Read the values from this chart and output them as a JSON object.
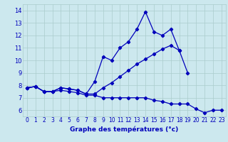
{
  "title": "Graphe des températures (°c)",
  "background_color": "#cce8ee",
  "grid_color": "#aacccc",
  "line_color": "#0000bb",
  "ylim": [
    5.5,
    14.5
  ],
  "yticks": [
    6,
    7,
    8,
    9,
    10,
    11,
    12,
    13,
    14
  ],
  "xlabels": [
    "0",
    "1",
    "2",
    "3",
    "4",
    "5",
    "6",
    "7",
    "8",
    "9",
    "10",
    "11",
    "12",
    "13",
    "14",
    "15",
    "16",
    "17",
    "18",
    "19",
    "20",
    "21",
    "22",
    "23"
  ],
  "line1_x": [
    0,
    1,
    2,
    3,
    4,
    5,
    6,
    7,
    8,
    9,
    10,
    11,
    12,
    13,
    14,
    15,
    16,
    17,
    18
  ],
  "line1_y": [
    7.8,
    7.9,
    7.5,
    7.5,
    7.8,
    7.7,
    7.6,
    7.3,
    8.3,
    10.3,
    10.0,
    11.0,
    11.5,
    12.5,
    13.9,
    12.3,
    12.0,
    12.5,
    10.8
  ],
  "line2_x": [
    0,
    1,
    2,
    3,
    4,
    5,
    6,
    7,
    8,
    9,
    10,
    11,
    12,
    13,
    14,
    15,
    16,
    17,
    18,
    19
  ],
  "line2_y": [
    7.8,
    7.9,
    7.5,
    7.5,
    7.8,
    7.7,
    7.6,
    7.3,
    7.3,
    7.8,
    8.2,
    8.7,
    9.2,
    9.7,
    10.1,
    10.5,
    10.9,
    11.2,
    10.8,
    9.0
  ],
  "line3_x": [
    0,
    1,
    2,
    3,
    4,
    5,
    6,
    7,
    8,
    9,
    10,
    11,
    12,
    13,
    14,
    15,
    16,
    17,
    18,
    19,
    20,
    21,
    22,
    23
  ],
  "line3_y": [
    7.8,
    7.9,
    7.5,
    7.5,
    7.6,
    7.5,
    7.4,
    7.2,
    7.2,
    7.0,
    7.0,
    7.0,
    7.0,
    7.0,
    7.0,
    6.8,
    6.7,
    6.5,
    6.5,
    6.5,
    6.1,
    5.8,
    6.0,
    6.0
  ],
  "xlabel_fontsize": 5.5,
  "ylabel_fontsize": 6.0,
  "title_fontsize": 6.5,
  "linewidth": 0.9,
  "markersize": 2.2
}
